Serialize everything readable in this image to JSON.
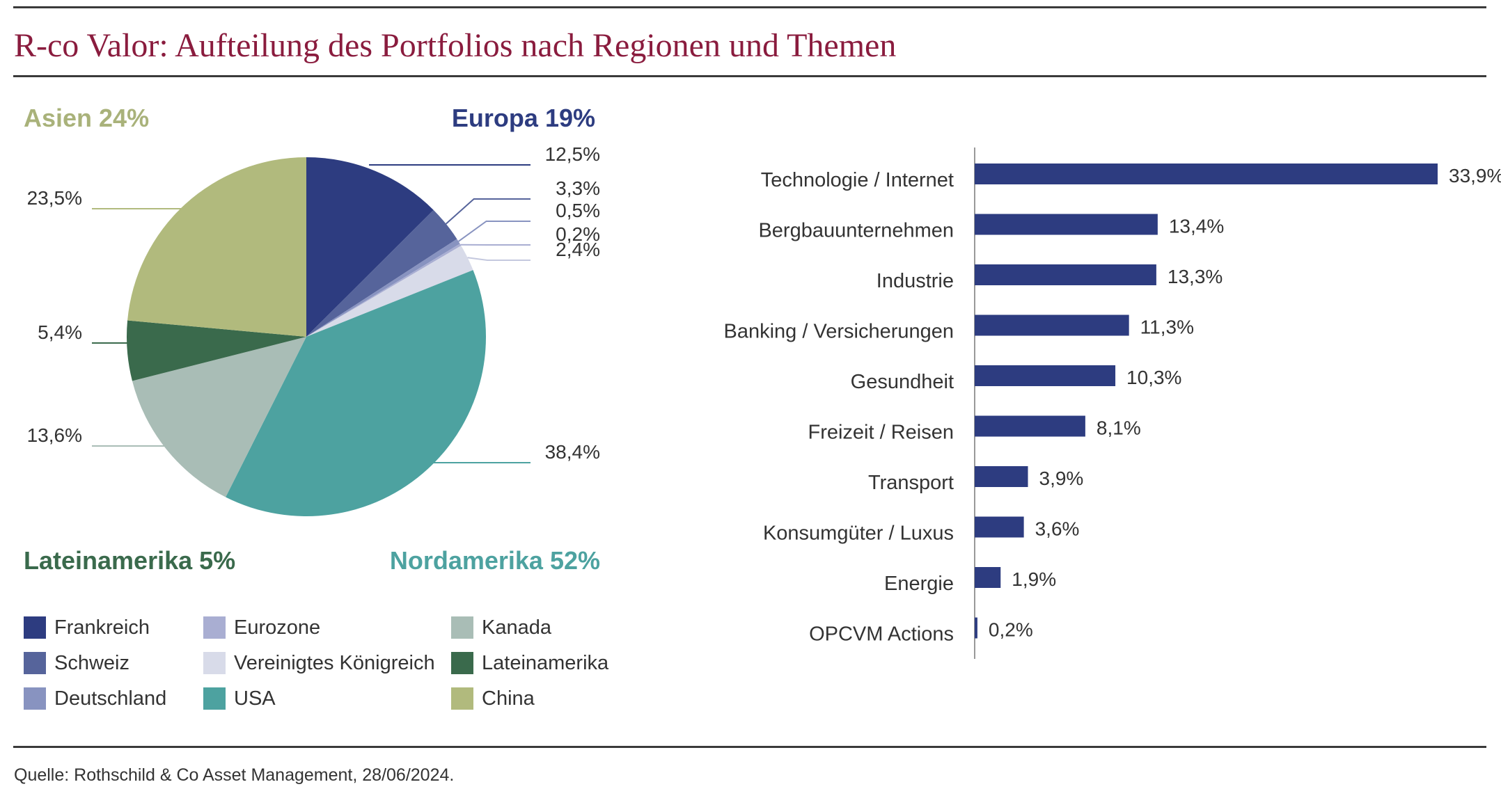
{
  "title": "R-co Valor: Aufteilung des Portfolios nach Regionen und Themen",
  "source": "Quelle: Rothschild & Co Asset Management, 28/06/2024.",
  "colors": {
    "title": "#8a1c3e",
    "bar": "#2d3c80"
  },
  "chart_data": [
    {
      "type": "pie",
      "slices": [
        {
          "name": "Frankreich",
          "value": 12.5,
          "label": "12,5%",
          "color": "#2d3c80"
        },
        {
          "name": "Schweiz",
          "value": 3.3,
          "label": "3,3%",
          "color": "#56649b"
        },
        {
          "name": "Deutschland",
          "value": 0.5,
          "label": "0,5%",
          "color": "#8893c0"
        },
        {
          "name": "Eurozone",
          "value": 0.2,
          "label": "0,2%",
          "color": "#a9aed2"
        },
        {
          "name": "Vereinigtes Königreich",
          "value": 2.4,
          "label": "2,4%",
          "color": "#d8dbe9"
        },
        {
          "name": "USA",
          "value": 38.4,
          "label": "38,4%",
          "color": "#4da2a0"
        },
        {
          "name": "Kanada",
          "value": 13.6,
          "label": "13,6%",
          "color": "#a9bdb6"
        },
        {
          "name": "Lateinamerika",
          "value": 5.4,
          "label": "5,4%",
          "color": "#3a6a4c"
        },
        {
          "name": "China",
          "value": 23.5,
          "label": "23,5%",
          "color": "#b1ba7d"
        }
      ],
      "region_labels": [
        {
          "text": "Asien 24%",
          "color": "#a9b27a"
        },
        {
          "text": "Europa 19%",
          "color": "#2d3c80"
        },
        {
          "text": "Lateinamerika 5%",
          "color": "#3a6a4c"
        },
        {
          "text": "Nordamerika 52%",
          "color": "#4da2a0"
        }
      ],
      "legend": [
        {
          "name": "Frankreich",
          "color": "#2d3c80"
        },
        {
          "name": "Schweiz",
          "color": "#56649b"
        },
        {
          "name": "Deutschland",
          "color": "#8893c0"
        },
        {
          "name": "Eurozone",
          "color": "#a9aed2"
        },
        {
          "name": "Vereinigtes Königreich",
          "color": "#d8dbe9"
        },
        {
          "name": "USA",
          "color": "#4da2a0"
        },
        {
          "name": "Kanada",
          "color": "#a9bdb6"
        },
        {
          "name": "Lateinamerika",
          "color": "#3a6a4c"
        },
        {
          "name": "China",
          "color": "#b1ba7d"
        }
      ]
    },
    {
      "type": "bar",
      "orientation": "horizontal",
      "categories": [
        "Technologie / Internet",
        "Bergbauunternehmen",
        "Industrie",
        "Banking / Versicherungen",
        "Gesundheit",
        "Freizeit / Reisen",
        "Transport",
        "Konsumgüter / Luxus",
        "Energie",
        "OPCVM Actions"
      ],
      "values": [
        33.9,
        13.4,
        13.3,
        11.3,
        10.3,
        8.1,
        3.9,
        3.6,
        1.9,
        0.2
      ],
      "value_labels": [
        "33,9%",
        "13,4%",
        "13,3%",
        "11,3%",
        "10,3%",
        "8,1%",
        "3,9%",
        "3,6%",
        "1,9%",
        "0,2%"
      ],
      "xlim": [
        0,
        33.9
      ]
    }
  ]
}
